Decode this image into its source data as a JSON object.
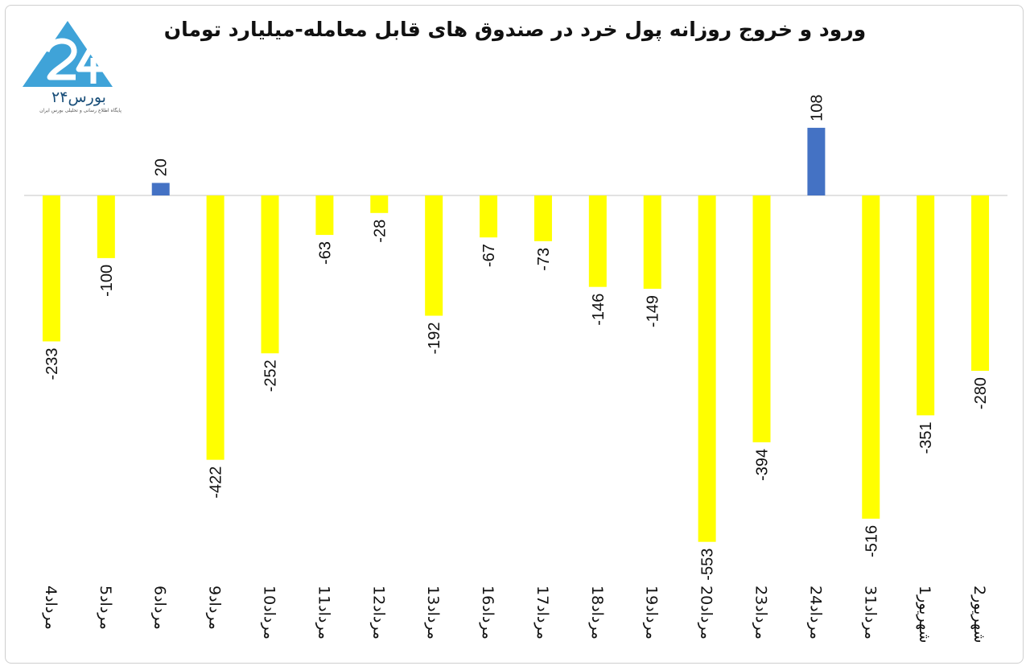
{
  "title": "ورود و خروج روزانه پول خرد در صندوق های قابل معامله-میلیارد تومان",
  "logo": {
    "text": "بورس۲۴",
    "tagline": "پایگاه اطلاع رسانی و تحلیلی بورس ایران"
  },
  "colors": {
    "positive": "#4472C4",
    "negative": "#FFFF00",
    "baseline": "#d9d9d9"
  },
  "chart_data": {
    "type": "bar",
    "categories": [
      "4مرداد",
      "5مرداد",
      "6مرداد",
      "9مرداد",
      "10مرداد",
      "11مرداد",
      "12مرداد",
      "13مرداد",
      "16مرداد",
      "17مرداد",
      "18مرداد",
      "19مرداد",
      "20مرداد",
      "23مرداد",
      "24مرداد",
      "31مرداد",
      "1شهریور",
      "2شهریور"
    ],
    "values": [
      -233,
      -100,
      20,
      -422,
      -252,
      -63,
      -28,
      -192,
      -67,
      -73,
      -146,
      -149,
      -553,
      -394,
      108,
      -516,
      -351,
      -280
    ],
    "value_labels": [
      "-233",
      "-100",
      "20",
      "-422",
      "-252",
      "-63",
      "-28",
      "-192",
      "-67",
      "-73",
      "-146",
      "-149",
      "-553",
      "-394",
      "108",
      "-516",
      "-351",
      "-280"
    ],
    "title": "ورود و خروج روزانه پول خرد در صندوق های قابل معامله-میلیارد تومان",
    "xlabel": "",
    "ylabel": "",
    "ylim": [
      -553,
      108
    ],
    "grid": false,
    "legend": "none"
  }
}
